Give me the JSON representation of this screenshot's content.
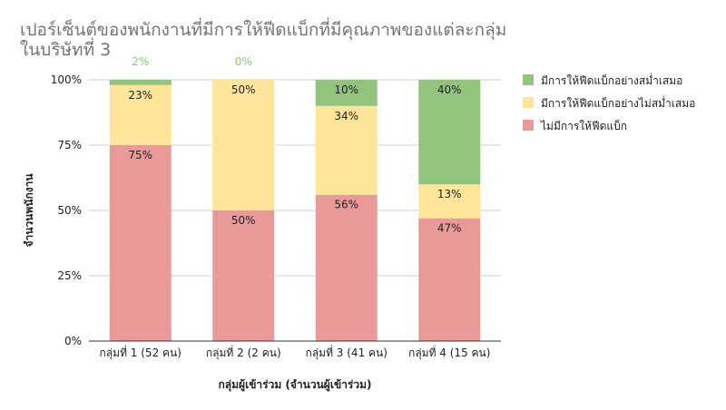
{
  "chart_data": {
    "type": "bar",
    "stacked": true,
    "title_lines": [
      "เปอร์เซ็นต์ของพนักงานที่มีการให้ฟีดแบ็กที่มีคุณภาพของแต่ละกลุ่ม",
      "ในบริษัทที่ 3"
    ],
    "xlabel": "กลุ่มผู้เข้าร่วม (จำนวนผู้เข้าร่วม)",
    "ylabel": "จำนวนพนักงาน",
    "ylim": [
      0,
      100
    ],
    "y_ticks": [
      "0%",
      "25%",
      "50%",
      "75%",
      "100%"
    ],
    "y_tick_values": [
      0,
      25,
      50,
      75,
      100
    ],
    "grid": true,
    "legend_position": "right",
    "categories": [
      "กลุ่มที่ 1 (52 คน)",
      "กลุ่มที่ 2 (2 คน)",
      "กลุ่มที่ 3 (41 คน)",
      "กลุ่มที่ 4 (15 คน)"
    ],
    "series": [
      {
        "name": "ไม่มีการให้ฟีดแบ็ก",
        "color": "#ea9999",
        "values": [
          75,
          50,
          56,
          47
        ],
        "labels": [
          "75%",
          "50%",
          "56%",
          "47%"
        ]
      },
      {
        "name": "มีการให้ฟีดแบ็กอย่างไม่สม่ำเสมอ",
        "color": "#ffe599",
        "values": [
          23,
          50,
          34,
          13
        ],
        "labels": [
          "23%",
          "50%",
          "34%",
          "13%"
        ]
      },
      {
        "name": "มีการให้ฟีดแบ็กอย่างสม่ำเสมอ",
        "color": "#93c47d",
        "values": [
          2,
          0,
          10,
          40
        ],
        "labels": [
          "2%",
          "0%",
          "10%",
          "40%"
        ]
      }
    ],
    "legend_order": [
      2,
      1,
      0
    ]
  }
}
